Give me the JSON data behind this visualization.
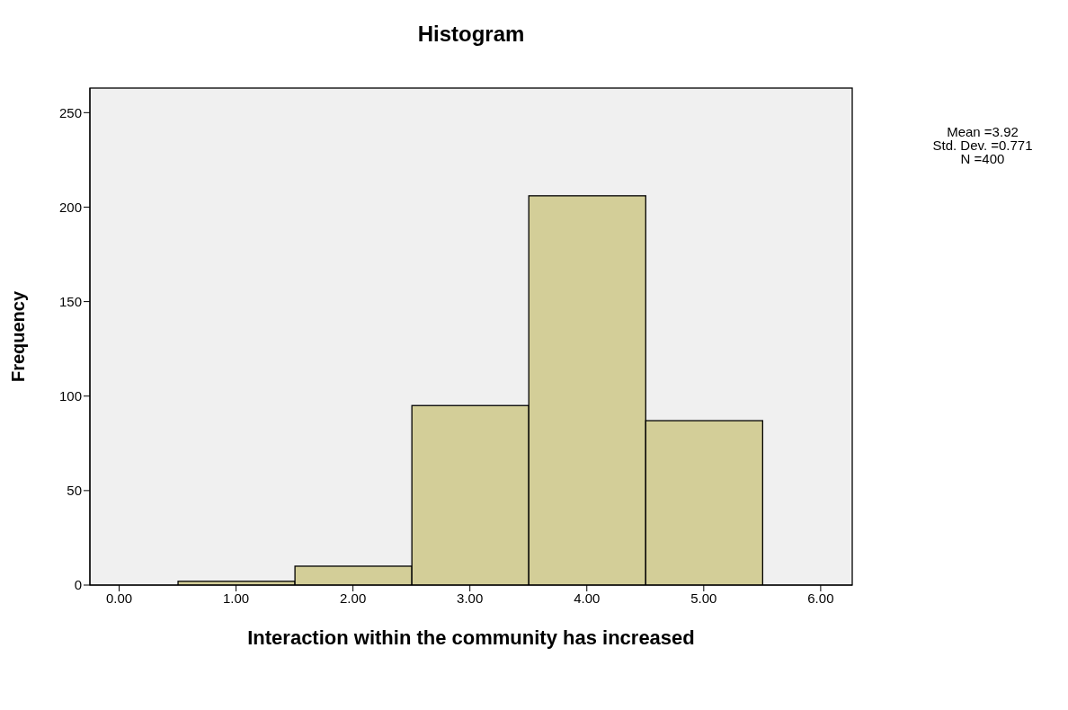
{
  "chart_data": {
    "type": "histogram",
    "title": "Histogram",
    "xlabel": "Interaction within the community has increased",
    "ylabel": "Frequency",
    "bins": [
      0.5,
      1.5,
      2.5,
      3.5,
      4.5,
      5.5
    ],
    "values": [
      2,
      10,
      95,
      206,
      87
    ],
    "color": "#d3ce98",
    "xlim": [
      -0.25,
      6.27
    ],
    "ylim": [
      0,
      263
    ],
    "xticks": [
      {
        "value": 0,
        "label": "0.00"
      },
      {
        "value": 1,
        "label": "1.00"
      },
      {
        "value": 2,
        "label": "2.00"
      },
      {
        "value": 3,
        "label": "3.00"
      },
      {
        "value": 4,
        "label": "4.00"
      },
      {
        "value": 5,
        "label": "5.00"
      },
      {
        "value": 6,
        "label": "6.00"
      }
    ],
    "yticks": [
      0,
      50,
      100,
      150,
      200,
      250
    ],
    "annotations": [
      "Mean =3.92",
      "Std. Dev. =0.771",
      "N =400"
    ],
    "grid": false,
    "legend": false
  }
}
